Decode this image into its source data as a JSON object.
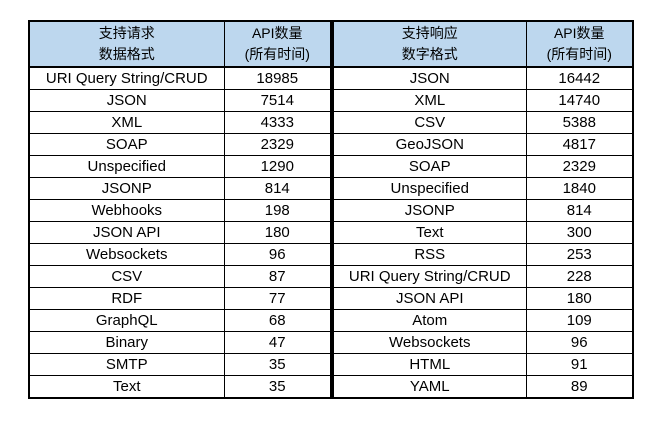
{
  "page": {
    "background": "#ffffff"
  },
  "colors": {
    "header_bg": "#bdd7ee",
    "border": "#000000",
    "text": "#000000"
  },
  "chart_data": [
    {
      "type": "table",
      "name": "supported-request-data-formats",
      "header": {
        "col1_line1": "支持请求",
        "col1_line2": "数据格式",
        "col2_line1": "API数量",
        "col2_line2": "(所有时间)"
      },
      "rows": [
        {
          "label": "URI Query String/CRUD",
          "value": 18985
        },
        {
          "label": "JSON",
          "value": 7514
        },
        {
          "label": "XML",
          "value": 4333
        },
        {
          "label": "SOAP",
          "value": 2329
        },
        {
          "label": "Unspecified",
          "value": 1290
        },
        {
          "label": "JSONP",
          "value": 814
        },
        {
          "label": "Webhooks",
          "value": 198
        },
        {
          "label": "JSON API",
          "value": 180
        },
        {
          "label": "Websockets",
          "value": 96
        },
        {
          "label": "CSV",
          "value": 87
        },
        {
          "label": "RDF",
          "value": 77
        },
        {
          "label": "GraphQL",
          "value": 68
        },
        {
          "label": "Binary",
          "value": 47
        },
        {
          "label": "SMTP",
          "value": 35
        },
        {
          "label": "Text",
          "value": 35
        }
      ]
    },
    {
      "type": "table",
      "name": "supported-response-data-formats",
      "header": {
        "col1_line1": "支持响应",
        "col1_line2": "数字格式",
        "col2_line1": "API数量",
        "col2_line2": "(所有时间)"
      },
      "rows": [
        {
          "label": "JSON",
          "value": 16442
        },
        {
          "label": "XML",
          "value": 14740
        },
        {
          "label": "CSV",
          "value": 5388
        },
        {
          "label": "GeoJSON",
          "value": 4817
        },
        {
          "label": "SOAP",
          "value": 2329
        },
        {
          "label": "Unspecified",
          "value": 1840
        },
        {
          "label": "JSONP",
          "value": 814
        },
        {
          "label": "Text",
          "value": 300
        },
        {
          "label": "RSS",
          "value": 253
        },
        {
          "label": "URI Query String/CRUD",
          "value": 228
        },
        {
          "label": "JSON API",
          "value": 180
        },
        {
          "label": "Atom",
          "value": 109
        },
        {
          "label": "Websockets",
          "value": 96
        },
        {
          "label": "HTML",
          "value": 91
        },
        {
          "label": "YAML",
          "value": 89
        }
      ]
    }
  ]
}
